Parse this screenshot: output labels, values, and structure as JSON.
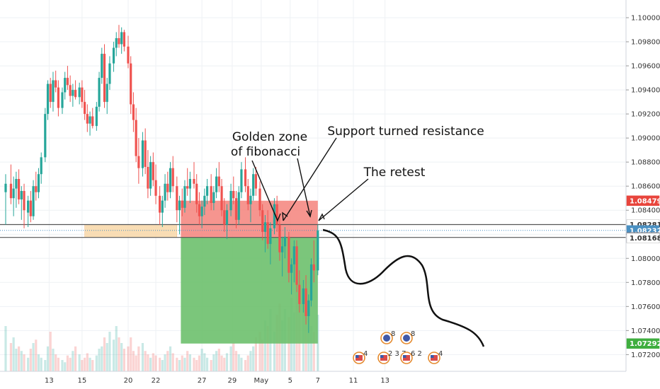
{
  "chart_data": {
    "type": "candlestick",
    "instrument": "EURUSD",
    "colors": {
      "up": "#26a69a",
      "down": "#ef5350",
      "golden_zone": "#f9d8a8",
      "stop_zone": "#f4827b",
      "target_zone": "#6dc06d",
      "price_line": "#4a90c2"
    },
    "y_axis": {
      "ylim": [
        1.0712,
        1.101
      ],
      "ticks": [
        "1.10000",
        "1.09800",
        "1.09600",
        "1.09400",
        "1.09200",
        "1.09000",
        "1.08800",
        "1.08600",
        "1.08400",
        "1.08200",
        "1.08000",
        "1.07800",
        "1.07600",
        "1.07400",
        "1.07200"
      ],
      "tick_values": [
        1.1,
        1.098,
        1.096,
        1.094,
        1.092,
        1.09,
        1.088,
        1.086,
        1.084,
        1.082,
        1.08,
        1.078,
        1.076,
        1.074,
        1.072
      ]
    },
    "x_axis": {
      "labels": [
        "13",
        "15",
        "20",
        "22",
        "27",
        "29",
        "May",
        "5",
        "7",
        "11",
        "13"
      ],
      "label_bar_index": [
        33,
        58,
        93,
        114,
        149,
        172,
        194,
        216,
        237,
        264,
        288
      ]
    },
    "price_badges": [
      {
        "label": "1.08479",
        "value": 1.08479,
        "bg": "#e8453c",
        "fg": "#ffffff"
      },
      {
        "label": "1.08281",
        "value": 1.08281,
        "bg": "#ffffff",
        "fg": "#333333"
      },
      {
        "label": "1.08232",
        "value": 1.08232,
        "bg": "#4a90c2",
        "fg": "#ffffff"
      },
      {
        "label": "1.08174",
        "value": 1.08174,
        "bg": "#787b86",
        "fg": "#ffffff"
      },
      {
        "label": "1.08168",
        "value": 1.08168,
        "bg": "#ffffff",
        "fg": "#333333"
      },
      {
        "label": "1.07292",
        "value": 1.07292,
        "bg": "#3fae3f",
        "fg": "#ffffff"
      }
    ],
    "candles": [
      [
        1.0855,
        1.087,
        1.0828,
        1.0862
      ],
      [
        1.0862,
        1.0878,
        1.0845,
        1.085
      ],
      [
        1.085,
        1.0868,
        1.0835,
        1.0858
      ],
      [
        1.0858,
        1.0872,
        1.0842,
        1.0866
      ],
      [
        1.0866,
        1.0874,
        1.0845,
        1.0849
      ],
      [
        1.0849,
        1.086,
        1.0832,
        1.0856
      ],
      [
        1.0856,
        1.0862,
        1.0825,
        1.084
      ],
      [
        1.0838,
        1.0852,
        1.0826,
        1.0848
      ],
      [
        1.0848,
        1.0856,
        1.083,
        1.0835
      ],
      [
        1.0835,
        1.0865,
        1.0832,
        1.086
      ],
      [
        1.086,
        1.0872,
        1.0848,
        1.0855
      ],
      [
        1.0855,
        1.0875,
        1.085,
        1.087
      ],
      [
        1.087,
        1.0888,
        1.0862,
        1.0884
      ],
      [
        1.0884,
        1.0925,
        1.088,
        1.092
      ],
      [
        1.092,
        1.0948,
        1.0915,
        1.0945
      ],
      [
        1.0945,
        1.095,
        1.0925,
        1.093
      ],
      [
        1.093,
        1.0955,
        1.0922,
        1.0948
      ],
      [
        1.0948,
        1.0956,
        1.0938,
        1.0942
      ],
      [
        1.0942,
        1.0948,
        1.0918,
        1.0925
      ],
      [
        1.0925,
        1.0942,
        1.092,
        1.0938
      ],
      [
        1.0938,
        1.0955,
        1.0932,
        1.095
      ],
      [
        1.095,
        1.096,
        1.094,
        1.0944
      ],
      [
        1.0944,
        1.0952,
        1.093,
        1.0935
      ],
      [
        1.0935,
        1.0945,
        1.0926,
        1.094
      ],
      [
        1.094,
        1.0948,
        1.0932,
        1.0934
      ],
      [
        1.0934,
        1.0946,
        1.0928,
        1.0942
      ],
      [
        1.0942,
        1.0948,
        1.0925,
        1.093
      ],
      [
        1.093,
        1.094,
        1.0915,
        1.092
      ],
      [
        1.092,
        1.0928,
        1.0905,
        1.0912
      ],
      [
        1.0912,
        1.0922,
        1.0902,
        1.0918
      ],
      [
        1.0918,
        1.0925,
        1.0908,
        1.091
      ],
      [
        1.091,
        1.093,
        1.0906,
        1.0926
      ],
      [
        1.0926,
        1.0955,
        1.0922,
        1.095
      ],
      [
        1.095,
        1.0975,
        1.0945,
        1.097
      ],
      [
        1.097,
        1.0978,
        1.0925,
        1.093
      ],
      [
        1.093,
        1.095,
        1.092,
        1.0945
      ],
      [
        1.0945,
        1.0968,
        1.094,
        1.0962
      ],
      [
        1.0962,
        1.098,
        1.0955,
        1.0975
      ],
      [
        1.0975,
        1.0988,
        1.0968,
        1.0983
      ],
      [
        1.0983,
        1.0994,
        1.0975,
        1.0978
      ],
      [
        1.0978,
        1.0992,
        1.097,
        1.0988
      ],
      [
        1.0988,
        1.099,
        1.0972,
        1.0976
      ],
      [
        1.0976,
        1.0985,
        1.0958,
        1.0962
      ],
      [
        1.0962,
        1.0968,
        1.092,
        1.0928
      ],
      [
        1.0928,
        1.0938,
        1.0905,
        1.0915
      ],
      [
        1.0915,
        1.0925,
        1.088,
        1.0885
      ],
      [
        1.0885,
        1.09,
        1.0862,
        1.0875
      ],
      [
        1.0875,
        1.0905,
        1.0868,
        1.0898
      ],
      [
        1.0898,
        1.0908,
        1.087,
        1.0876
      ],
      [
        1.0876,
        1.089,
        1.085,
        1.0858
      ],
      [
        1.0858,
        1.0885,
        1.0852,
        1.088
      ],
      [
        1.088,
        1.0888,
        1.086,
        1.0865
      ],
      [
        1.0865,
        1.0878,
        1.0845,
        1.0852
      ],
      [
        1.0852,
        1.086,
        1.0828,
        1.0838
      ],
      [
        1.0838,
        1.0852,
        1.0826,
        1.0848
      ],
      [
        1.0848,
        1.087,
        1.0842,
        1.0862
      ],
      [
        1.0862,
        1.0872,
        1.0848,
        1.0855
      ],
      [
        1.0855,
        1.088,
        1.085,
        1.0875
      ],
      [
        1.0875,
        1.0885,
        1.0855,
        1.086
      ],
      [
        1.086,
        1.0868,
        1.083,
        1.084
      ],
      [
        1.084,
        1.0852,
        1.082,
        1.0848
      ],
      [
        1.0848,
        1.0858,
        1.0835,
        1.0842
      ],
      [
        1.0842,
        1.0865,
        1.0838,
        1.086
      ],
      [
        1.086,
        1.0875,
        1.0852,
        1.0858
      ],
      [
        1.0858,
        1.0872,
        1.0846,
        1.0866
      ],
      [
        1.0866,
        1.088,
        1.0858,
        1.0862
      ],
      [
        1.0862,
        1.087,
        1.0838,
        1.0845
      ],
      [
        1.0845,
        1.0855,
        1.0828,
        1.0835
      ],
      [
        1.0835,
        1.0848,
        1.0825,
        1.0843
      ],
      [
        1.0843,
        1.0858,
        1.0836,
        1.0852
      ],
      [
        1.0852,
        1.0866,
        1.0845,
        1.086
      ],
      [
        1.086,
        1.087,
        1.084,
        1.0846
      ],
      [
        1.0846,
        1.086,
        1.084,
        1.0855
      ],
      [
        1.0855,
        1.0875,
        1.085,
        1.0868
      ],
      [
        1.0868,
        1.088,
        1.0855,
        1.086
      ],
      [
        1.086,
        1.0866,
        1.0835,
        1.084
      ],
      [
        1.084,
        1.085,
        1.0822,
        1.0828
      ],
      [
        1.0828,
        1.0845,
        1.0816,
        1.084
      ],
      [
        1.084,
        1.0862,
        1.0835,
        1.0856
      ],
      [
        1.0856,
        1.0868,
        1.0845,
        1.085
      ],
      [
        1.085,
        1.0856,
        1.0825,
        1.0832
      ],
      [
        1.0832,
        1.086,
        1.0828,
        1.0855
      ],
      [
        1.0855,
        1.088,
        1.085,
        1.0874
      ],
      [
        1.0874,
        1.0884,
        1.0855,
        1.086
      ],
      [
        1.086,
        1.0866,
        1.084,
        1.0845
      ],
      [
        1.0845,
        1.0858,
        1.083,
        1.0852
      ],
      [
        1.0852,
        1.0875,
        1.0848,
        1.087
      ],
      [
        1.087,
        1.0876,
        1.0852,
        1.0858
      ],
      [
        1.0858,
        1.0864,
        1.0835,
        1.084
      ],
      [
        1.084,
        1.0845,
        1.0815,
        1.0822
      ],
      [
        1.0822,
        1.0836,
        1.0805,
        1.083
      ],
      [
        1.083,
        1.084,
        1.0808,
        1.0812
      ],
      [
        1.0812,
        1.083,
        1.0795,
        1.0825
      ],
      [
        1.0825,
        1.085,
        1.082,
        1.0845
      ],
      [
        1.0845,
        1.0852,
        1.0822,
        1.0828
      ],
      [
        1.0828,
        1.0836,
        1.0798,
        1.0805
      ],
      [
        1.0805,
        1.0818,
        1.0785,
        1.081
      ],
      [
        1.081,
        1.0826,
        1.08,
        1.0818
      ],
      [
        1.0818,
        1.0822,
        1.078,
        1.0788
      ],
      [
        1.0788,
        1.08,
        1.077,
        1.0795
      ],
      [
        1.0795,
        1.0815,
        1.078,
        1.081
      ],
      [
        1.081,
        1.0815,
        1.0772,
        1.0778
      ],
      [
        1.0778,
        1.079,
        1.0755,
        1.0762
      ],
      [
        1.0762,
        1.0782,
        1.0755,
        1.0775
      ],
      [
        1.0775,
        1.0786,
        1.0745,
        1.0752
      ],
      [
        1.0752,
        1.077,
        1.0738,
        1.0765
      ],
      [
        1.0765,
        1.08,
        1.076,
        1.0795
      ],
      [
        1.0795,
        1.0815,
        1.078,
        1.079
      ],
      [
        1.079,
        1.0828,
        1.0786,
        1.0823
      ]
    ],
    "bar_x": [
      0,
      4,
      6,
      8,
      10,
      12,
      14,
      17,
      19,
      21,
      23,
      25,
      27,
      30,
      32,
      34,
      36,
      38,
      40,
      43,
      45,
      47,
      49,
      51,
      53,
      56,
      58,
      60,
      62,
      64,
      66,
      69,
      71,
      73,
      75,
      77,
      79,
      82,
      84,
      86,
      88,
      90,
      93,
      95,
      97,
      99,
      101,
      104,
      106,
      108,
      110,
      112,
      114,
      117,
      119,
      121,
      123,
      125,
      127,
      130,
      132,
      134,
      136,
      138,
      140,
      143,
      145,
      147,
      149,
      151,
      153,
      156,
      158,
      160,
      162,
      164,
      166,
      168,
      171,
      173,
      175,
      177,
      179,
      182,
      184,
      186,
      188,
      190,
      193,
      195,
      197,
      199,
      201,
      204,
      206,
      208,
      210,
      212,
      215,
      217,
      219,
      221,
      223,
      226,
      228,
      230,
      232,
      234,
      237,
      239
    ],
    "volumes": [
      0.4,
      0.25,
      0.3,
      0.2,
      0.22,
      0.18,
      0.15,
      0.12,
      0.2,
      0.25,
      0.28,
      0.15,
      0.12,
      0.1,
      0.22,
      0.35,
      0.2,
      0.15,
      0.12,
      0.1,
      0.08,
      0.14,
      0.12,
      0.18,
      0.22,
      0.15,
      0.1,
      0.12,
      0.16,
      0.12,
      0.1,
      0.14,
      0.2,
      0.22,
      0.3,
      0.25,
      0.35,
      0.28,
      0.4,
      0.3,
      0.25,
      0.2,
      0.22,
      0.3,
      0.18,
      0.14,
      0.22,
      0.25,
      0.18,
      0.15,
      0.12,
      0.16,
      0.14,
      0.12,
      0.1,
      0.15,
      0.18,
      0.22,
      0.16,
      0.12,
      0.1,
      0.14,
      0.12,
      0.18,
      0.15,
      0.12,
      0.1,
      0.14,
      0.2,
      0.16,
      0.12,
      0.1,
      0.15,
      0.18,
      0.2,
      0.14,
      0.12,
      0.16,
      0.22,
      0.25,
      0.18,
      0.15,
      0.12,
      0.1,
      0.14,
      0.18,
      0.22,
      0.3,
      0.35,
      0.28,
      0.45,
      0.4,
      0.55,
      0.35,
      0.5,
      0.6,
      0.45,
      0.55,
      0.48,
      0.65,
      0.52,
      0.7,
      0.58,
      0.62,
      0.48,
      0.55,
      0.4,
      0.35,
      0.5,
      0.45
    ],
    "zones": {
      "golden_zone": {
        "y1": 1.08281,
        "y2": 1.08174,
        "x_start": 60,
        "x_end": 130
      },
      "stop_zone": {
        "y1": 1.08479,
        "y2": 1.08174,
        "x_start": 133,
        "x_end": 237
      },
      "target_zone": {
        "y1": 1.08174,
        "y2": 1.07292,
        "x_start": 133,
        "x_end": 237
      }
    },
    "horizontal_lines": [
      1.08281,
      1.08174
    ],
    "current_price": 1.08232,
    "annotations": [
      {
        "text": "Golden zone",
        "key": "ann1"
      },
      {
        "text": "of fibonacci",
        "key": "ann2"
      },
      {
        "text": "Support turned resistance",
        "key": "ann3"
      },
      {
        "text": "The retest",
        "key": "ann4"
      }
    ],
    "events": [
      {
        "count": "8",
        "region": "eu"
      },
      {
        "count": "8",
        "region": "eu"
      },
      {
        "count": "4",
        "region": "us"
      },
      {
        "count": "2 3 7",
        "region": "us"
      },
      {
        "count": "6 2",
        "region": "us"
      },
      {
        "count": "4",
        "region": "us"
      }
    ]
  }
}
